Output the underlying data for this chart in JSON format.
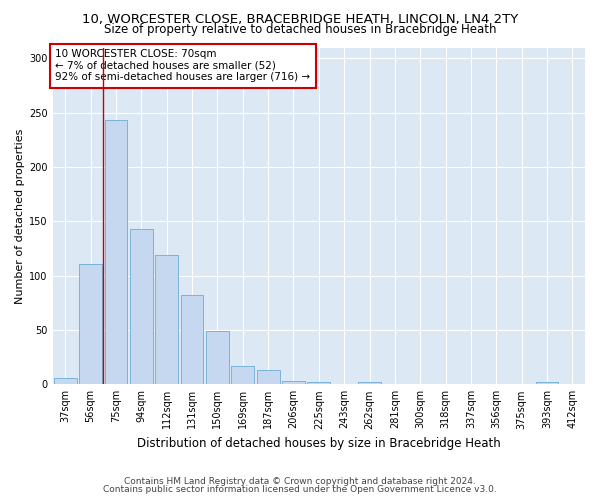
{
  "title1": "10, WORCESTER CLOSE, BRACEBRIDGE HEATH, LINCOLN, LN4 2TY",
  "title2": "Size of property relative to detached houses in Bracebridge Heath",
  "xlabel": "Distribution of detached houses by size in Bracebridge Heath",
  "ylabel": "Number of detached properties",
  "categories": [
    "37sqm",
    "56sqm",
    "75sqm",
    "94sqm",
    "112sqm",
    "131sqm",
    "150sqm",
    "169sqm",
    "187sqm",
    "206sqm",
    "225sqm",
    "243sqm",
    "262sqm",
    "281sqm",
    "300sqm",
    "318sqm",
    "337sqm",
    "356sqm",
    "375sqm",
    "393sqm",
    "412sqm"
  ],
  "values": [
    6,
    111,
    243,
    143,
    119,
    82,
    49,
    17,
    13,
    3,
    2,
    0,
    2,
    0,
    0,
    0,
    0,
    0,
    0,
    2,
    0
  ],
  "bar_color": "#c5d8f0",
  "bar_edge_color": "#6aacd4",
  "vline_x": 1.5,
  "vline_color": "#cc0000",
  "annotation_text": "10 WORCESTER CLOSE: 70sqm\n← 7% of detached houses are smaller (52)\n92% of semi-detached houses are larger (716) →",
  "annotation_box_color": "#ffffff",
  "annotation_box_edge": "#cc0000",
  "footer1": "Contains HM Land Registry data © Crown copyright and database right 2024.",
  "footer2": "Contains public sector information licensed under the Open Government Licence v3.0.",
  "ylim": [
    0,
    310
  ],
  "fig_bg_color": "#ffffff",
  "plot_bg_color": "#dce9f5",
  "grid_color": "#ffffff",
  "title1_fontsize": 9.5,
  "title2_fontsize": 8.5,
  "xlabel_fontsize": 8.5,
  "ylabel_fontsize": 8,
  "tick_fontsize": 7,
  "ann_fontsize": 7.5,
  "footer_fontsize": 6.5
}
